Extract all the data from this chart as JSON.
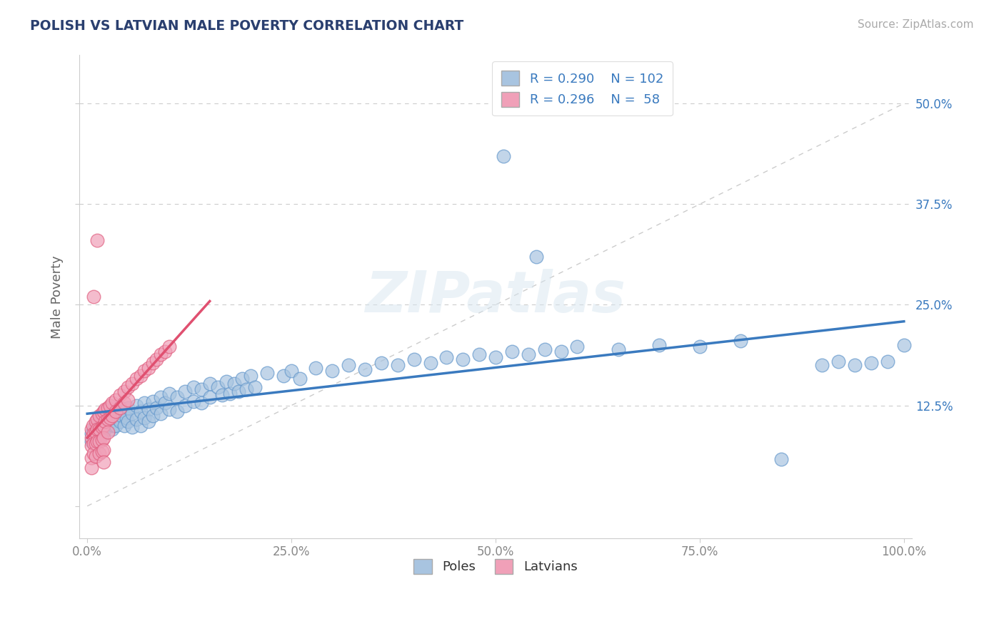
{
  "title": "POLISH VS LATVIAN MALE POVERTY CORRELATION CHART",
  "source": "Source: ZipAtlas.com",
  "ylabel": "Male Poverty",
  "xlim": [
    -0.01,
    1.01
  ],
  "ylim": [
    -0.04,
    0.56
  ],
  "xticks": [
    0.0,
    0.25,
    0.5,
    0.75,
    1.0
  ],
  "xticklabels": [
    "0.0%",
    "25.0%",
    "50.0%",
    "75.0%",
    "100.0%"
  ],
  "yticks": [
    0.0,
    0.125,
    0.25,
    0.375,
    0.5
  ],
  "yticklabels_left": [
    "",
    "",
    "",
    "",
    ""
  ],
  "yticklabels_right": [
    "",
    "12.5%",
    "25.0%",
    "37.5%",
    "50.0%"
  ],
  "grid_color": "#cccccc",
  "background_color": "#ffffff",
  "poles_color": "#a8c4e0",
  "latvians_color": "#f0a0b8",
  "poles_edge_color": "#6699cc",
  "latvians_edge_color": "#e06080",
  "poles_line_color": "#3a7abf",
  "latvians_line_color": "#e05070",
  "diag_color": "#cccccc",
  "poles_R": 0.29,
  "poles_N": 102,
  "latvians_R": 0.296,
  "latvians_N": 58,
  "watermark": "ZIPatlas",
  "poles_scatter": [
    [
      0.005,
      0.09
    ],
    [
      0.005,
      0.08
    ],
    [
      0.008,
      0.095
    ],
    [
      0.01,
      0.1
    ],
    [
      0.01,
      0.085
    ],
    [
      0.012,
      0.09
    ],
    [
      0.015,
      0.105
    ],
    [
      0.015,
      0.095
    ],
    [
      0.018,
      0.1
    ],
    [
      0.018,
      0.088
    ],
    [
      0.02,
      0.11
    ],
    [
      0.02,
      0.092
    ],
    [
      0.022,
      0.095
    ],
    [
      0.025,
      0.115
    ],
    [
      0.025,
      0.1
    ],
    [
      0.028,
      0.105
    ],
    [
      0.03,
      0.11
    ],
    [
      0.03,
      0.095
    ],
    [
      0.032,
      0.1
    ],
    [
      0.035,
      0.115
    ],
    [
      0.035,
      0.1
    ],
    [
      0.038,
      0.108
    ],
    [
      0.04,
      0.12
    ],
    [
      0.04,
      0.105
    ],
    [
      0.042,
      0.112
    ],
    [
      0.045,
      0.118
    ],
    [
      0.045,
      0.1
    ],
    [
      0.048,
      0.11
    ],
    [
      0.05,
      0.122
    ],
    [
      0.05,
      0.105
    ],
    [
      0.055,
      0.115
    ],
    [
      0.055,
      0.098
    ],
    [
      0.06,
      0.125
    ],
    [
      0.06,
      0.108
    ],
    [
      0.065,
      0.118
    ],
    [
      0.065,
      0.1
    ],
    [
      0.07,
      0.128
    ],
    [
      0.07,
      0.11
    ],
    [
      0.075,
      0.12
    ],
    [
      0.075,
      0.105
    ],
    [
      0.08,
      0.13
    ],
    [
      0.08,
      0.112
    ],
    [
      0.085,
      0.122
    ],
    [
      0.09,
      0.135
    ],
    [
      0.09,
      0.115
    ],
    [
      0.095,
      0.128
    ],
    [
      0.1,
      0.14
    ],
    [
      0.1,
      0.12
    ],
    [
      0.11,
      0.135
    ],
    [
      0.11,
      0.118
    ],
    [
      0.12,
      0.142
    ],
    [
      0.12,
      0.125
    ],
    [
      0.13,
      0.148
    ],
    [
      0.13,
      0.13
    ],
    [
      0.14,
      0.145
    ],
    [
      0.14,
      0.128
    ],
    [
      0.15,
      0.152
    ],
    [
      0.15,
      0.135
    ],
    [
      0.16,
      0.148
    ],
    [
      0.165,
      0.138
    ],
    [
      0.17,
      0.155
    ],
    [
      0.175,
      0.14
    ],
    [
      0.18,
      0.152
    ],
    [
      0.185,
      0.142
    ],
    [
      0.19,
      0.158
    ],
    [
      0.195,
      0.145
    ],
    [
      0.2,
      0.162
    ],
    [
      0.205,
      0.148
    ],
    [
      0.22,
      0.165
    ],
    [
      0.24,
      0.162
    ],
    [
      0.25,
      0.168
    ],
    [
      0.26,
      0.158
    ],
    [
      0.28,
      0.172
    ],
    [
      0.3,
      0.168
    ],
    [
      0.32,
      0.175
    ],
    [
      0.34,
      0.17
    ],
    [
      0.36,
      0.178
    ],
    [
      0.38,
      0.175
    ],
    [
      0.4,
      0.182
    ],
    [
      0.42,
      0.178
    ],
    [
      0.44,
      0.185
    ],
    [
      0.46,
      0.182
    ],
    [
      0.48,
      0.188
    ],
    [
      0.5,
      0.185
    ],
    [
      0.52,
      0.192
    ],
    [
      0.54,
      0.188
    ],
    [
      0.56,
      0.195
    ],
    [
      0.58,
      0.192
    ],
    [
      0.51,
      0.435
    ],
    [
      0.55,
      0.31
    ],
    [
      0.6,
      0.198
    ],
    [
      0.65,
      0.195
    ],
    [
      0.7,
      0.2
    ],
    [
      0.75,
      0.198
    ],
    [
      0.8,
      0.205
    ],
    [
      0.85,
      0.058
    ],
    [
      0.9,
      0.175
    ],
    [
      0.92,
      0.18
    ],
    [
      0.94,
      0.175
    ],
    [
      0.96,
      0.178
    ],
    [
      0.98,
      0.18
    ],
    [
      1.0,
      0.2
    ]
  ],
  "latvians_scatter": [
    [
      0.005,
      0.095
    ],
    [
      0.005,
      0.085
    ],
    [
      0.005,
      0.075
    ],
    [
      0.005,
      0.06
    ],
    [
      0.005,
      0.048
    ],
    [
      0.007,
      0.1
    ],
    [
      0.008,
      0.09
    ],
    [
      0.008,
      0.078
    ],
    [
      0.008,
      0.065
    ],
    [
      0.01,
      0.105
    ],
    [
      0.01,
      0.092
    ],
    [
      0.01,
      0.078
    ],
    [
      0.01,
      0.062
    ],
    [
      0.012,
      0.108
    ],
    [
      0.012,
      0.095
    ],
    [
      0.012,
      0.08
    ],
    [
      0.015,
      0.112
    ],
    [
      0.015,
      0.095
    ],
    [
      0.015,
      0.08
    ],
    [
      0.015,
      0.065
    ],
    [
      0.018,
      0.115
    ],
    [
      0.018,
      0.098
    ],
    [
      0.018,
      0.082
    ],
    [
      0.018,
      0.068
    ],
    [
      0.02,
      0.118
    ],
    [
      0.02,
      0.1
    ],
    [
      0.02,
      0.085
    ],
    [
      0.02,
      0.07
    ],
    [
      0.02,
      0.055
    ],
    [
      0.022,
      0.12
    ],
    [
      0.022,
      0.105
    ],
    [
      0.025,
      0.122
    ],
    [
      0.025,
      0.108
    ],
    [
      0.025,
      0.092
    ],
    [
      0.028,
      0.125
    ],
    [
      0.028,
      0.11
    ],
    [
      0.03,
      0.128
    ],
    [
      0.03,
      0.112
    ],
    [
      0.035,
      0.132
    ],
    [
      0.035,
      0.118
    ],
    [
      0.04,
      0.138
    ],
    [
      0.04,
      0.122
    ],
    [
      0.045,
      0.142
    ],
    [
      0.045,
      0.128
    ],
    [
      0.05,
      0.148
    ],
    [
      0.05,
      0.132
    ],
    [
      0.055,
      0.152
    ],
    [
      0.06,
      0.158
    ],
    [
      0.065,
      0.162
    ],
    [
      0.07,
      0.168
    ],
    [
      0.075,
      0.172
    ],
    [
      0.08,
      0.178
    ],
    [
      0.085,
      0.182
    ],
    [
      0.09,
      0.188
    ],
    [
      0.095,
      0.192
    ],
    [
      0.1,
      0.198
    ],
    [
      0.008,
      0.26
    ],
    [
      0.012,
      0.33
    ]
  ]
}
